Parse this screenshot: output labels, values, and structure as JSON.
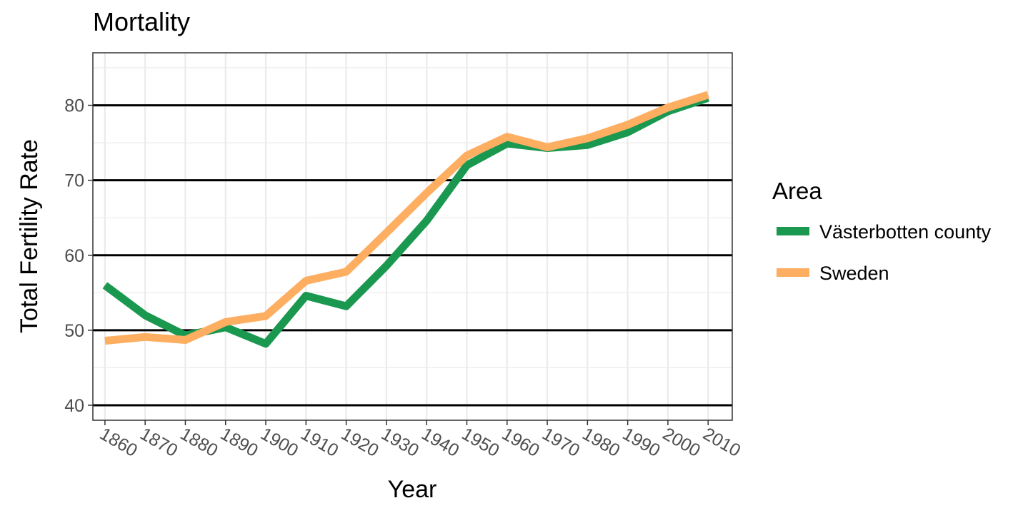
{
  "chart_data": {
    "type": "line",
    "title": "Mortality",
    "xlabel": "Year",
    "ylabel": "Total Fertility Rate",
    "x": [
      1860,
      1870,
      1880,
      1890,
      1900,
      1910,
      1920,
      1930,
      1940,
      1950,
      1960,
      1970,
      1980,
      1990,
      2000,
      2010
    ],
    "series": [
      {
        "name": "Västerbotten county",
        "color": "#1b9850",
        "values": [
          56.0,
          52.0,
          49.3,
          50.4,
          48.2,
          54.6,
          53.2,
          58.6,
          64.6,
          72.0,
          74.9,
          74.3,
          74.7,
          76.4,
          79.2,
          81.0
        ]
      },
      {
        "name": "Sweden",
        "color": "#fdae61",
        "values": [
          48.6,
          49.1,
          48.7,
          51.1,
          51.9,
          56.6,
          57.8,
          63.0,
          68.3,
          73.3,
          75.8,
          74.4,
          75.6,
          77.4,
          79.7,
          81.4
        ]
      }
    ],
    "ylim": [
      38,
      87
    ],
    "xlim": [
      1857,
      2016
    ],
    "yticks": [
      40,
      50,
      60,
      70,
      80
    ],
    "xticks": [
      1860,
      1870,
      1880,
      1890,
      1900,
      1910,
      1920,
      1930,
      1940,
      1950,
      1960,
      1970,
      1980,
      1990,
      2000,
      2010
    ],
    "grid": true,
    "legend": {
      "title": "Area",
      "position": "right"
    }
  }
}
